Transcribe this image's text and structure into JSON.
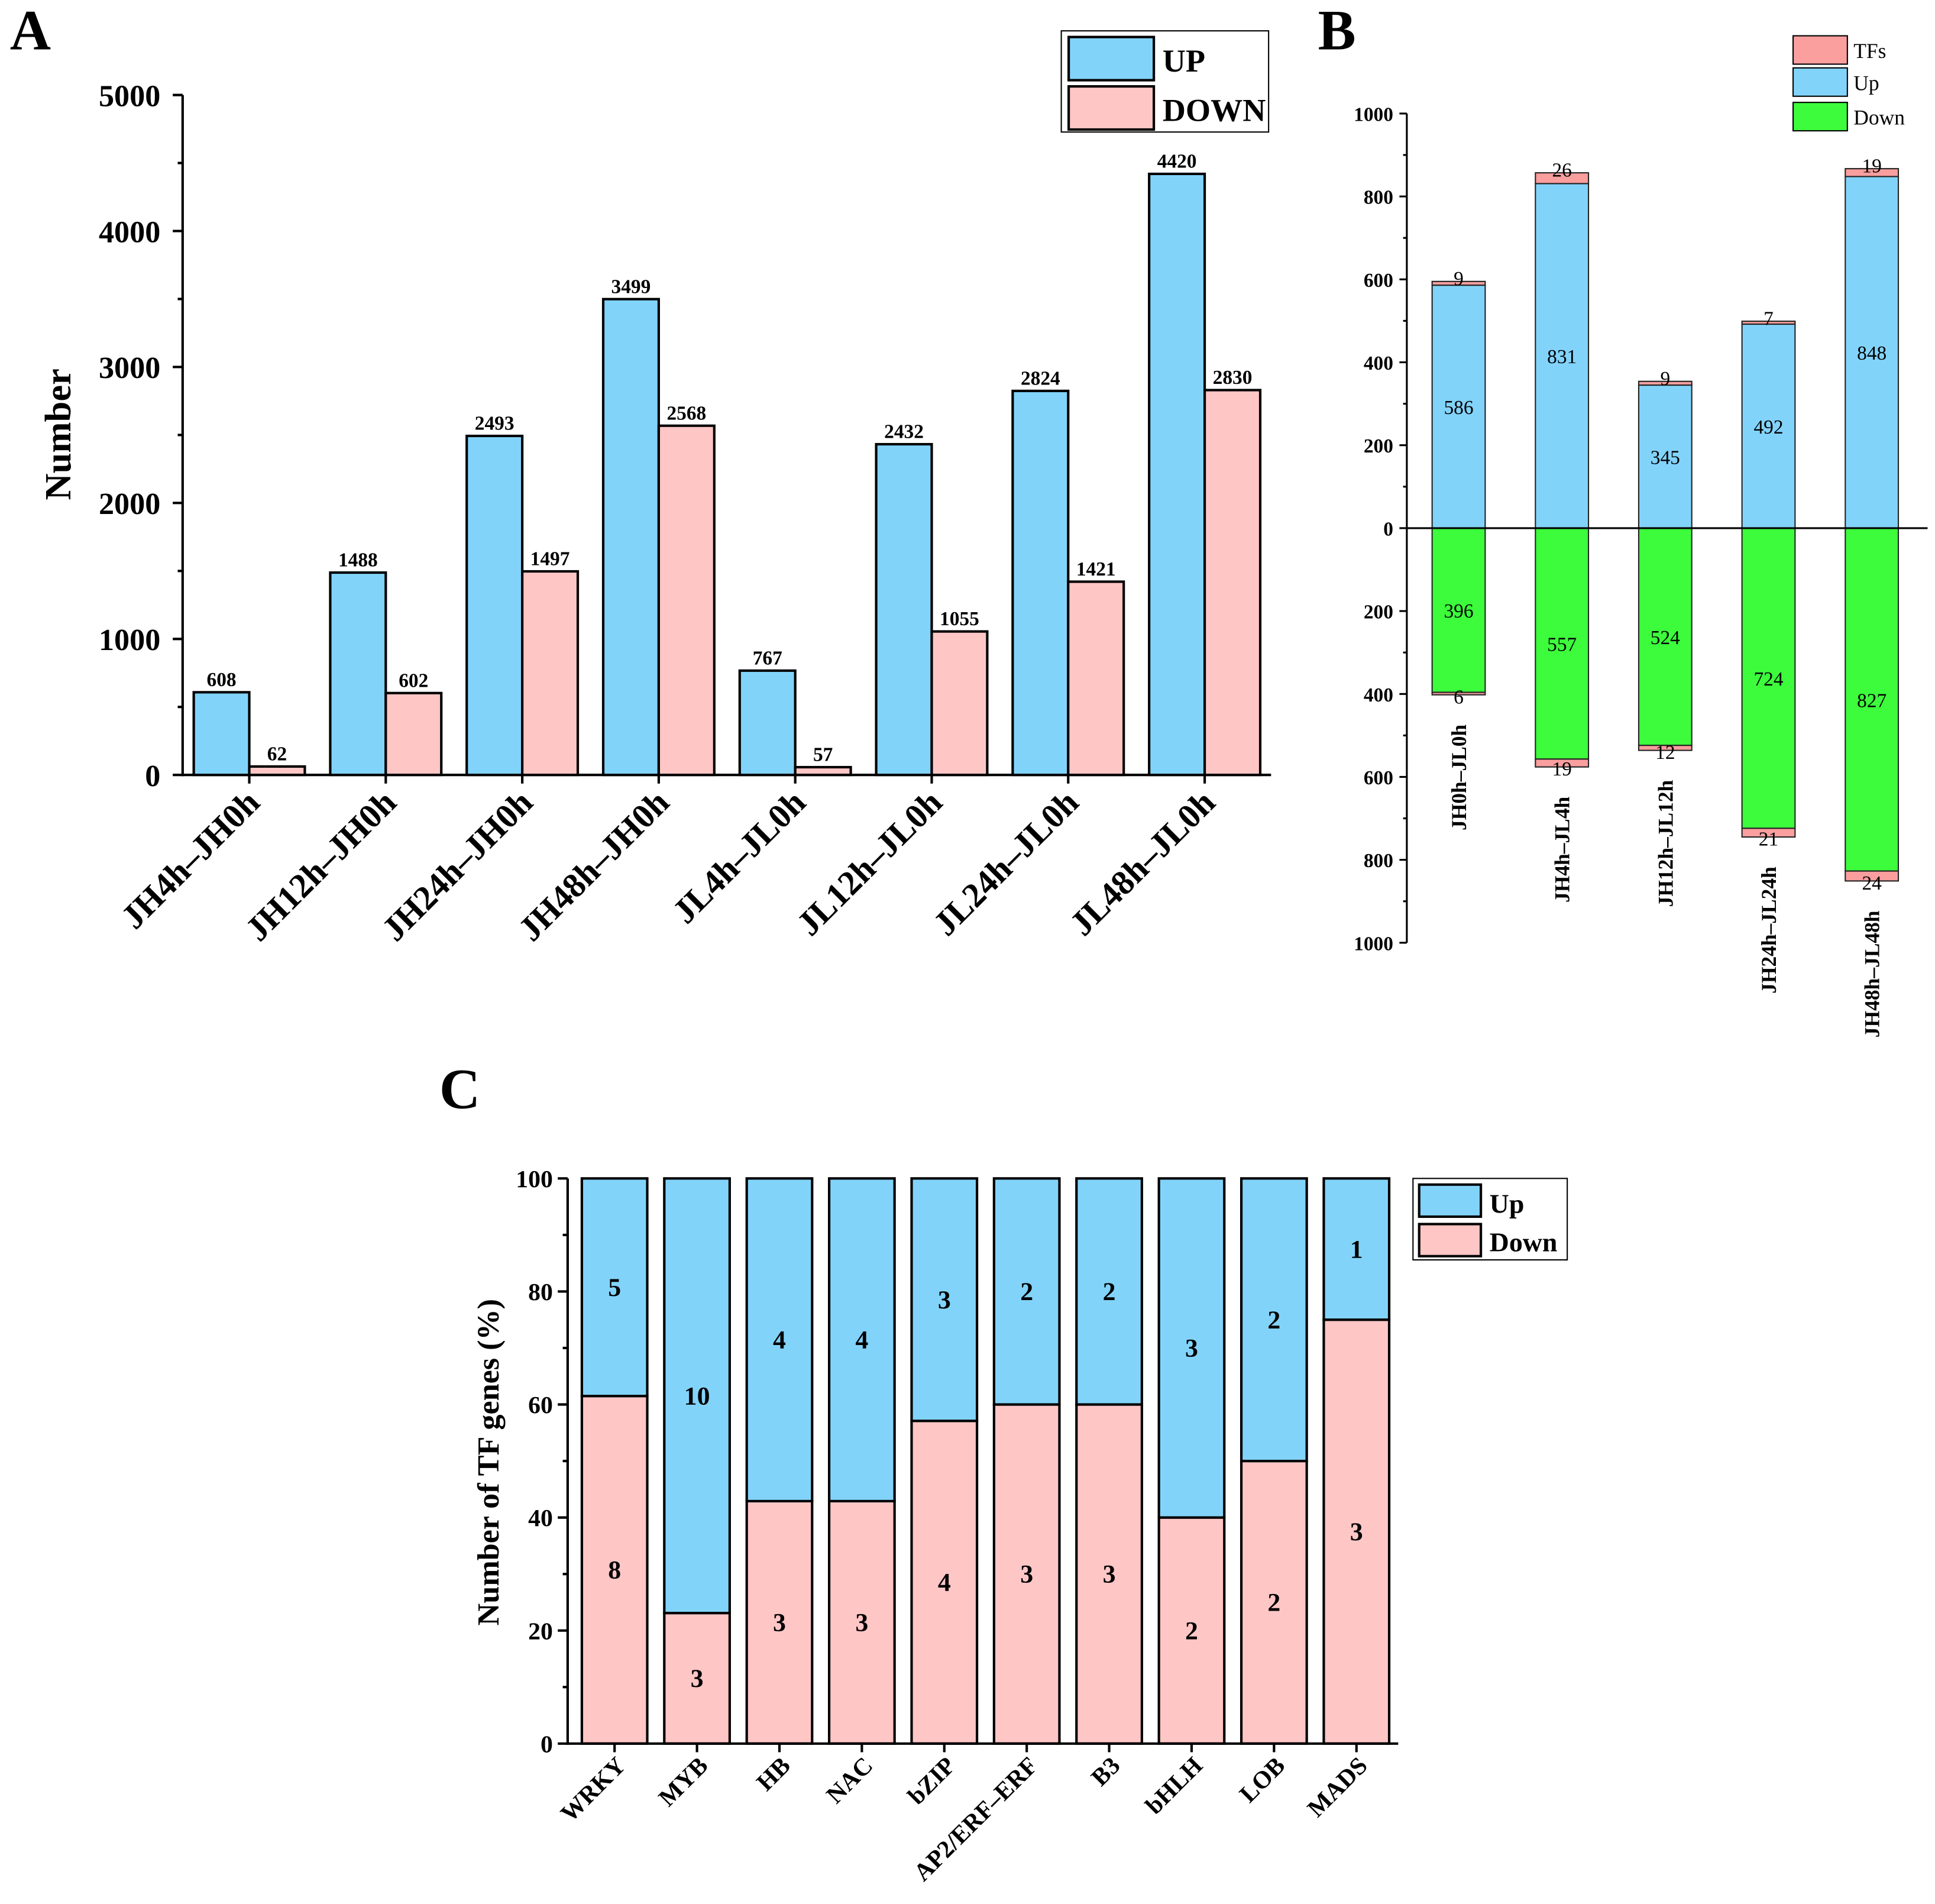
{
  "chart_data": [
    {
      "panel_label": "A",
      "type": "bar",
      "categories": [
        "JH4h–JH0h",
        "JH12h–JH0h",
        "JH24h–JH0h",
        "JH48h–JH0h",
        "JL4h–JL0h",
        "JL12h–JL0h",
        "JL24h–JL0h",
        "JL48h–JL0h"
      ],
      "series": [
        {
          "name": "UP",
          "values": [
            608,
            1488,
            2493,
            3499,
            767,
            2432,
            2824,
            4420
          ],
          "color": "#82D3FA"
        },
        {
          "name": "DOWN",
          "values": [
            62,
            602,
            1497,
            2568,
            57,
            1055,
            1421,
            2830
          ],
          "color": "#FFC6C6"
        }
      ],
      "ylabel": "Number",
      "ylim": [
        0,
        5000
      ],
      "yticks": [
        0,
        1000,
        2000,
        3000,
        4000,
        5000
      ],
      "data_labels": true,
      "grid": false,
      "legend": "top-right"
    },
    {
      "panel_label": "B",
      "type": "bar",
      "stacked": true,
      "diverging": true,
      "categories": [
        "JH0h–JL0h",
        "JH4h–JL4h",
        "JH12h–JL12h",
        "JH24h–JL24h",
        "JH48h–JL48h"
      ],
      "series": [
        {
          "name": "TFs",
          "values_up": [
            9,
            26,
            9,
            7,
            19
          ],
          "values_down": [
            6,
            19,
            12,
            21,
            24
          ],
          "color": "#FA9E9E"
        },
        {
          "name": "Up",
          "values": [
            586,
            831,
            345,
            492,
            848
          ],
          "color": "#82D3FA"
        },
        {
          "name": "Down",
          "values": [
            396,
            557,
            524,
            724,
            827
          ],
          "color": "#3CFC3C"
        }
      ],
      "ylim": [
        -1000,
        1000
      ],
      "yticks": [
        0,
        200,
        400,
        600,
        800,
        1000
      ],
      "data_labels": true,
      "grid": false,
      "legend": "top-right"
    },
    {
      "panel_label": "C",
      "type": "bar",
      "stacked": true,
      "categories": [
        "WRKY",
        "MYB",
        "HB",
        "NAC",
        "bZIP",
        "AP2/ERF–ERF",
        "B3",
        "bHLH",
        "LOB",
        "MADS"
      ],
      "series": [
        {
          "name": "Down",
          "values": [
            61.5,
            23.1,
            42.9,
            42.9,
            57.1,
            60,
            60,
            40,
            50,
            75
          ],
          "counts": [
            8,
            3,
            3,
            3,
            4,
            3,
            3,
            2,
            2,
            3
          ],
          "color": "#FFC6C6"
        },
        {
          "name": "Up",
          "values": [
            38.5,
            76.9,
            57.1,
            57.1,
            42.9,
            40,
            40,
            60,
            50,
            25
          ],
          "counts": [
            5,
            10,
            4,
            4,
            3,
            2,
            2,
            3,
            2,
            1
          ],
          "color": "#82D3FA"
        }
      ],
      "ylabel": "Number of TF genes (%)",
      "ylim": [
        0,
        100
      ],
      "yticks": [
        0,
        20,
        40,
        60,
        80,
        100
      ],
      "data_labels": true,
      "grid": false,
      "legend": "top-right"
    }
  ]
}
